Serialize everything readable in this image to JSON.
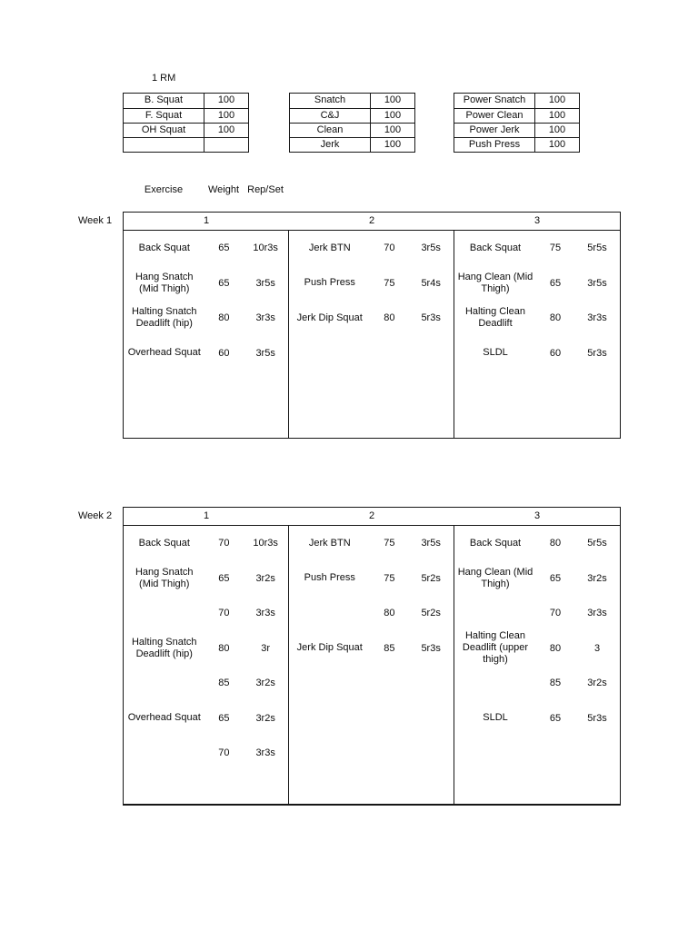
{
  "rm_label": "1 RM",
  "rm_tables": [
    {
      "rows": [
        {
          "name": "B. Squat",
          "value": "100"
        },
        {
          "name": "F. Squat",
          "value": "100"
        },
        {
          "name": "OH Squat",
          "value": "100"
        },
        {
          "name": "",
          "value": ""
        }
      ]
    },
    {
      "rows": [
        {
          "name": "Snatch",
          "value": "100"
        },
        {
          "name": "C&J",
          "value": "100"
        },
        {
          "name": "Clean",
          "value": "100"
        },
        {
          "name": "Jerk",
          "value": "100"
        }
      ]
    },
    {
      "rows": [
        {
          "name": "Power Snatch",
          "value": "100"
        },
        {
          "name": "Power Clean",
          "value": "100"
        },
        {
          "name": "Power Jerk",
          "value": "100"
        },
        {
          "name": "Push Press",
          "value": "100"
        }
      ]
    }
  ],
  "column_headers": {
    "exercise": "Exercise",
    "weight": "Weight",
    "repset": "Rep/Set"
  },
  "weeks": [
    {
      "label": "Week 1",
      "day_headers": [
        "1",
        "2",
        "3"
      ],
      "days": [
        {
          "rows": [
            {
              "exercise": "Back Squat",
              "weight": "65",
              "reps": "10r3s"
            },
            {
              "exercise": "Hang Snatch (Mid Thigh)",
              "weight": "65",
              "reps": "3r5s"
            },
            {
              "exercise": "Halting Snatch Deadlift (hip)",
              "weight": "80",
              "reps": "3r3s"
            },
            {
              "exercise": "Overhead Squat",
              "weight": "60",
              "reps": "3r5s"
            }
          ]
        },
        {
          "rows": [
            {
              "exercise": "Jerk BTN",
              "weight": "70",
              "reps": "3r5s"
            },
            {
              "exercise": "Push Press",
              "weight": "75",
              "reps": "5r4s"
            },
            {
              "exercise": "Jerk Dip Squat",
              "weight": "80",
              "reps": "5r3s"
            }
          ]
        },
        {
          "rows": [
            {
              "exercise": "Back Squat",
              "weight": "75",
              "reps": "5r5s"
            },
            {
              "exercise": "Hang Clean (Mid Thigh)",
              "weight": "65",
              "reps": "3r5s"
            },
            {
              "exercise": "Halting Clean Deadlift",
              "weight": "80",
              "reps": "3r3s"
            },
            {
              "exercise": "SLDL",
              "weight": "60",
              "reps": "5r3s"
            }
          ]
        }
      ]
    },
    {
      "label": "Week 2",
      "day_headers": [
        "1",
        "2",
        "3"
      ],
      "days": [
        {
          "rows": [
            {
              "exercise": "Back Squat",
              "weight": "70",
              "reps": "10r3s"
            },
            {
              "exercise": "Hang Snatch (Mid Thigh)",
              "weight": "65",
              "reps": "3r2s"
            },
            {
              "exercise": "",
              "weight": "70",
              "reps": "3r3s"
            },
            {
              "exercise": "Halting Snatch Deadlift (hip)",
              "weight": "80",
              "reps": "3r"
            },
            {
              "exercise": "",
              "weight": "85",
              "reps": "3r2s"
            },
            {
              "exercise": "Overhead Squat",
              "weight": "65",
              "reps": "3r2s"
            },
            {
              "exercise": "",
              "weight": "70",
              "reps": "3r3s"
            }
          ]
        },
        {
          "rows": [
            {
              "exercise": "Jerk BTN",
              "weight": "75",
              "reps": "3r5s"
            },
            {
              "exercise": "Push Press",
              "weight": "75",
              "reps": "5r2s"
            },
            {
              "exercise": "",
              "weight": "80",
              "reps": "5r2s"
            },
            {
              "exercise": "Jerk Dip Squat",
              "weight": "85",
              "reps": "5r3s"
            }
          ]
        },
        {
          "rows": [
            {
              "exercise": "Back Squat",
              "weight": "80",
              "reps": "5r5s"
            },
            {
              "exercise": "Hang Clean (Mid Thigh)",
              "weight": "65",
              "reps": "3r2s"
            },
            {
              "exercise": "",
              "weight": "70",
              "reps": "3r3s"
            },
            {
              "exercise": "Halting Clean Deadlift (upper thigh)",
              "weight": "80",
              "reps": "3"
            },
            {
              "exercise": "",
              "weight": "85",
              "reps": "3r2s"
            },
            {
              "exercise": "SLDL",
              "weight": "65",
              "reps": "5r3s"
            }
          ]
        }
      ]
    }
  ]
}
